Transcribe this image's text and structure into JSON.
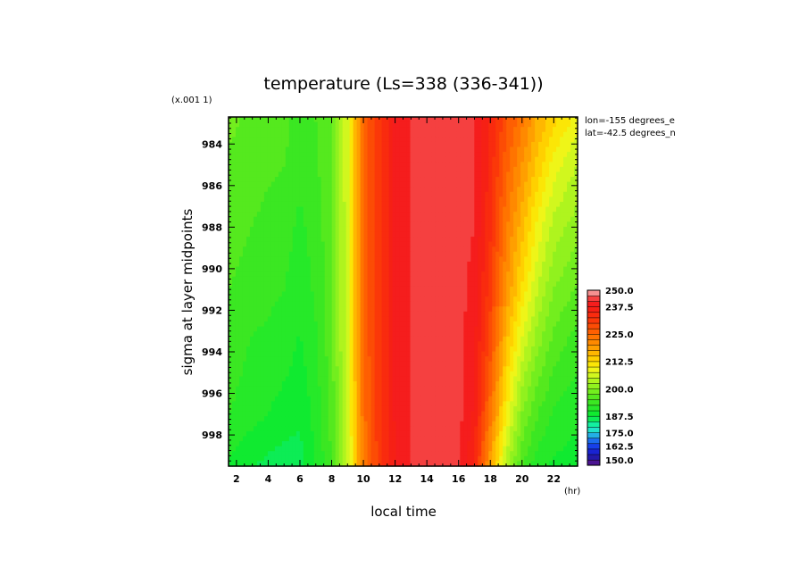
{
  "chart_data": {
    "type": "heatmap",
    "title": "temperature (Ls=338 (336-341))",
    "xlabel": "local time",
    "ylabel": "sigma at layer midpoints",
    "x_unit": "(hr)",
    "y_scale_note": "(x.001 1)",
    "annotations": [
      "lon=-155 degrees_e",
      "lat=-42.5 degrees_n"
    ],
    "xlim": [
      1.5,
      23.5
    ],
    "ylim": [
      982.7,
      999.5
    ],
    "y_inverted": true,
    "x_tick_labels": [
      "2",
      "4",
      "6",
      "8",
      "10",
      "12",
      "14",
      "16",
      "18",
      "20",
      "22"
    ],
    "x_ticks": [
      2,
      4,
      6,
      8,
      10,
      12,
      14,
      16,
      18,
      20,
      22
    ],
    "y_tick_labels": [
      "984",
      "986",
      "988",
      "990",
      "992",
      "994",
      "996",
      "998"
    ],
    "y_ticks": [
      984,
      986,
      988,
      990,
      992,
      994,
      996,
      998
    ],
    "colorbar": {
      "levels": [
        145,
        150,
        155,
        160,
        165,
        170,
        175,
        180,
        185,
        187.5,
        190,
        192.5,
        195,
        197.5,
        200,
        202.5,
        205,
        207.5,
        210,
        212.5,
        215,
        217.5,
        220,
        222.5,
        225,
        227.5,
        230,
        232.5,
        235,
        237.5,
        240,
        245,
        250
      ],
      "labels": [
        "250.0",
        "237.5",
        "225.0",
        "212.5",
        "200.0",
        "187.5",
        "175.0",
        "162.5",
        "150.0"
      ],
      "label_values": [
        250,
        237.5,
        225,
        212.5,
        200,
        187.5,
        175,
        162.5,
        150
      ]
    },
    "times": [
      1.5,
      3,
      5,
      6,
      7,
      8,
      9,
      10,
      11,
      12,
      13,
      14,
      15,
      16,
      17,
      18,
      19,
      20,
      21,
      22,
      23,
      23.5
    ],
    "sigma": [
      983,
      985,
      988,
      991,
      994,
      997,
      999.5
    ],
    "values": [
      [
        198,
        197,
        196,
        193.5,
        195,
        197.5,
        207,
        225,
        232,
        238,
        240,
        241,
        241,
        241,
        240,
        235,
        228,
        223,
        217,
        213,
        210,
        208
      ],
      [
        197,
        196,
        195,
        193,
        194.5,
        197.5,
        207,
        225,
        232,
        238,
        240,
        241,
        241,
        241,
        240,
        234,
        226,
        220,
        214,
        209,
        206,
        205
      ],
      [
        196,
        195,
        193.5,
        192,
        193.5,
        197,
        207,
        225,
        232,
        238,
        240,
        241,
        241,
        241,
        240,
        233,
        223,
        216,
        209,
        204,
        202,
        201
      ],
      [
        195,
        194,
        192.5,
        191,
        193,
        197,
        207,
        225,
        232,
        238,
        240,
        241,
        241,
        241,
        239,
        231,
        220,
        212,
        205,
        200,
        198,
        197
      ],
      [
        194,
        192,
        191,
        189.5,
        192,
        196.5,
        207,
        225,
        232,
        238,
        240,
        241,
        241,
        241,
        238,
        228,
        215,
        206,
        200,
        196,
        194,
        193.5
      ],
      [
        192.5,
        191,
        189,
        188,
        191,
        196,
        206,
        224,
        232,
        238,
        240,
        241,
        241,
        241,
        237,
        224,
        210,
        200,
        195,
        192,
        191,
        190.5
      ],
      [
        189.5,
        187.5,
        186,
        186.5,
        190,
        195,
        205,
        223,
        231,
        237,
        240,
        241,
        241,
        240,
        235,
        218,
        204,
        195,
        191,
        189.5,
        189,
        189
      ]
    ]
  }
}
